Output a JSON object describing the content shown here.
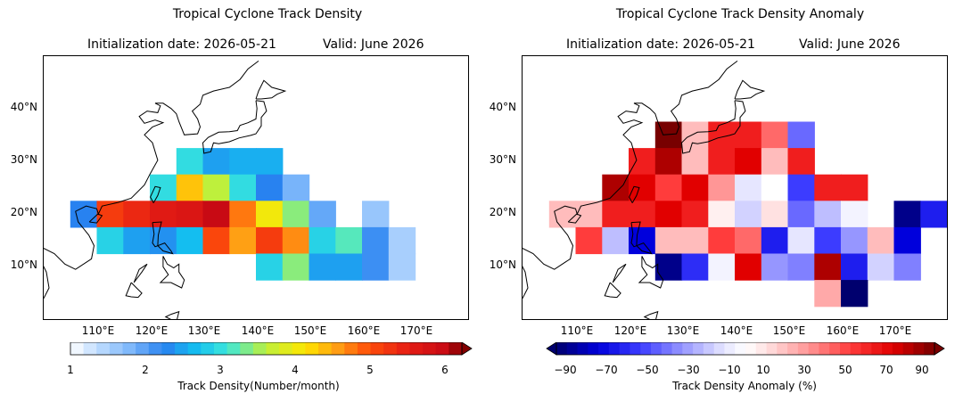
{
  "left_panel": {
    "title": "Tropical Cyclone Track Density",
    "init_label": "Initialization date: 2026-05-21",
    "valid_label": "Valid: June 2026",
    "colorbar_title": "Track Density(Number/month)",
    "colorbar_ticks": [
      "1",
      "2",
      "3",
      "4",
      "5",
      "6"
    ]
  },
  "right_panel": {
    "title": "Tropical Cyclone Track Density Anomaly",
    "init_label": "Initialization date: 2026-05-21",
    "valid_label": "Valid: June 2026",
    "colorbar_title": "Track Density Anomaly (%)",
    "colorbar_ticks": [
      "−90",
      "−70",
      "−50",
      "−30",
      "−10",
      "10",
      "30",
      "50",
      "70",
      "90"
    ]
  },
  "map_axes": {
    "lat_labels": [
      "40°N",
      "30°N",
      "20°N",
      "10°N"
    ],
    "lon_labels": [
      "110°E",
      "120°E",
      "130°E",
      "140°E",
      "150°E",
      "160°E",
      "170°E"
    ]
  },
  "chart_data": [
    {
      "type": "heatmap",
      "title": "Tropical Cyclone Track Density",
      "units": "Number/month",
      "cell_size_deg": 5,
      "color_range": [
        1,
        6
      ],
      "cells": [
        {
          "lon": 127.5,
          "lat": 30,
          "value": 2.9
        },
        {
          "lon": 132.5,
          "lat": 30,
          "value": 2.4
        },
        {
          "lon": 137.5,
          "lat": 30,
          "value": 2.5
        },
        {
          "lon": 142.5,
          "lat": 30,
          "value": 2.5
        },
        {
          "lon": 122.5,
          "lat": 25,
          "value": 2.9
        },
        {
          "lon": 127.5,
          "lat": 25,
          "value": 4.2
        },
        {
          "lon": 132.5,
          "lat": 25,
          "value": 3.5
        },
        {
          "lon": 137.5,
          "lat": 25,
          "value": 2.9
        },
        {
          "lon": 142.5,
          "lat": 25,
          "value": 2.2
        },
        {
          "lon": 147.5,
          "lat": 25,
          "value": 1.8
        },
        {
          "lon": 107.5,
          "lat": 20,
          "value": 2.2
        },
        {
          "lon": 112.5,
          "lat": 20,
          "value": 5.0
        },
        {
          "lon": 117.5,
          "lat": 20,
          "value": 5.2
        },
        {
          "lon": 122.5,
          "lat": 20,
          "value": 5.4
        },
        {
          "lon": 127.5,
          "lat": 20,
          "value": 5.5
        },
        {
          "lon": 132.5,
          "lat": 20,
          "value": 5.8
        },
        {
          "lon": 137.5,
          "lat": 20,
          "value": 4.6
        },
        {
          "lon": 142.5,
          "lat": 20,
          "value": 3.9
        },
        {
          "lon": 147.5,
          "lat": 20,
          "value": 3.3
        },
        {
          "lon": 152.5,
          "lat": 20,
          "value": 1.9
        },
        {
          "lon": 162.5,
          "lat": 20,
          "value": 1.6
        },
        {
          "lon": 112.5,
          "lat": 15,
          "value": 2.8
        },
        {
          "lon": 117.5,
          "lat": 15,
          "value": 2.4
        },
        {
          "lon": 122.5,
          "lat": 15,
          "value": 2.3
        },
        {
          "lon": 127.5,
          "lat": 15,
          "value": 2.6
        },
        {
          "lon": 132.5,
          "lat": 15,
          "value": 4.9
        },
        {
          "lon": 137.5,
          "lat": 15,
          "value": 4.4
        },
        {
          "lon": 142.5,
          "lat": 15,
          "value": 5.0
        },
        {
          "lon": 147.5,
          "lat": 15,
          "value": 4.5
        },
        {
          "lon": 152.5,
          "lat": 15,
          "value": 2.8
        },
        {
          "lon": 157.5,
          "lat": 15,
          "value": 3.1
        },
        {
          "lon": 162.5,
          "lat": 15,
          "value": 2.1
        },
        {
          "lon": 167.5,
          "lat": 15,
          "value": 1.5
        },
        {
          "lon": 142.5,
          "lat": 10,
          "value": 2.8
        },
        {
          "lon": 147.5,
          "lat": 10,
          "value": 3.3
        },
        {
          "lon": 152.5,
          "lat": 10,
          "value": 2.4
        },
        {
          "lon": 157.5,
          "lat": 10,
          "value": 2.4
        },
        {
          "lon": 162.5,
          "lat": 10,
          "value": 2.1
        },
        {
          "lon": 167.5,
          "lat": 10,
          "value": 1.5
        }
      ]
    },
    {
      "type": "heatmap",
      "title": "Tropical Cyclone Track Density Anomaly",
      "units": "%",
      "cell_size_deg": 5,
      "color_range": [
        -90,
        90
      ],
      "cells": [
        {
          "lon": 127.5,
          "lat": 35,
          "value": 90
        },
        {
          "lon": 132.5,
          "lat": 35,
          "value": 20
        },
        {
          "lon": 137.5,
          "lat": 35,
          "value": 60
        },
        {
          "lon": 142.5,
          "lat": 35,
          "value": 60
        },
        {
          "lon": 147.5,
          "lat": 35,
          "value": 40
        },
        {
          "lon": 152.5,
          "lat": 35,
          "value": -40
        },
        {
          "lon": 122.5,
          "lat": 30,
          "value": 60
        },
        {
          "lon": 127.5,
          "lat": 30,
          "value": 80
        },
        {
          "lon": 132.5,
          "lat": 30,
          "value": 20
        },
        {
          "lon": 137.5,
          "lat": 30,
          "value": 60
        },
        {
          "lon": 142.5,
          "lat": 30,
          "value": 70
        },
        {
          "lon": 147.5,
          "lat": 30,
          "value": 20
        },
        {
          "lon": 152.5,
          "lat": 30,
          "value": 60
        },
        {
          "lon": 117.5,
          "lat": 25,
          "value": 80
        },
        {
          "lon": 122.5,
          "lat": 25,
          "value": 70
        },
        {
          "lon": 127.5,
          "lat": 25,
          "value": 50
        },
        {
          "lon": 132.5,
          "lat": 25,
          "value": 70
        },
        {
          "lon": 137.5,
          "lat": 25,
          "value": 30
        },
        {
          "lon": 142.5,
          "lat": 25,
          "value": -10
        },
        {
          "lon": 147.5,
          "lat": 25,
          "value": 0
        },
        {
          "lon": 152.5,
          "lat": 25,
          "value": -50
        },
        {
          "lon": 157.5,
          "lat": 25,
          "value": 60
        },
        {
          "lon": 162.5,
          "lat": 25,
          "value": 60
        },
        {
          "lon": 107.5,
          "lat": 20,
          "value": 20
        },
        {
          "lon": 112.5,
          "lat": 20,
          "value": 20
        },
        {
          "lon": 117.5,
          "lat": 20,
          "value": 60
        },
        {
          "lon": 122.5,
          "lat": 20,
          "value": 60
        },
        {
          "lon": 127.5,
          "lat": 20,
          "value": 70
        },
        {
          "lon": 132.5,
          "lat": 20,
          "value": 60
        },
        {
          "lon": 137.5,
          "lat": 20,
          "value": 5
        },
        {
          "lon": 142.5,
          "lat": 20,
          "value": -15
        },
        {
          "lon": 147.5,
          "lat": 20,
          "value": 10
        },
        {
          "lon": 152.5,
          "lat": 20,
          "value": -40
        },
        {
          "lon": 157.5,
          "lat": 20,
          "value": -20
        },
        {
          "lon": 162.5,
          "lat": 20,
          "value": -5
        },
        {
          "lon": 172.5,
          "lat": 20,
          "value": -85
        },
        {
          "lon": 177.5,
          "lat": 20,
          "value": -60
        },
        {
          "lon": 112.5,
          "lat": 15,
          "value": 50
        },
        {
          "lon": 117.5,
          "lat": 15,
          "value": -20
        },
        {
          "lon": 122.5,
          "lat": 15,
          "value": -70
        },
        {
          "lon": 127.5,
          "lat": 15,
          "value": 20
        },
        {
          "lon": 132.5,
          "lat": 15,
          "value": 20
        },
        {
          "lon": 137.5,
          "lat": 15,
          "value": 50
        },
        {
          "lon": 142.5,
          "lat": 15,
          "value": 40
        },
        {
          "lon": 147.5,
          "lat": 15,
          "value": -60
        },
        {
          "lon": 152.5,
          "lat": 15,
          "value": -10
        },
        {
          "lon": 157.5,
          "lat": 15,
          "value": -50
        },
        {
          "lon": 162.5,
          "lat": 15,
          "value": -30
        },
        {
          "lon": 167.5,
          "lat": 15,
          "value": 20
        },
        {
          "lon": 172.5,
          "lat": 15,
          "value": -70
        },
        {
          "lon": 127.5,
          "lat": 10,
          "value": -85
        },
        {
          "lon": 132.5,
          "lat": 10,
          "value": -55
        },
        {
          "lon": 137.5,
          "lat": 10,
          "value": -5
        },
        {
          "lon": 142.5,
          "lat": 10,
          "value": 70
        },
        {
          "lon": 147.5,
          "lat": 10,
          "value": -30
        },
        {
          "lon": 152.5,
          "lat": 10,
          "value": -35
        },
        {
          "lon": 157.5,
          "lat": 10,
          "value": 80
        },
        {
          "lon": 162.5,
          "lat": 10,
          "value": -60
        },
        {
          "lon": 167.5,
          "lat": 10,
          "value": -15
        },
        {
          "lon": 172.5,
          "lat": 10,
          "value": -35
        },
        {
          "lon": 157.5,
          "lat": 5,
          "value": 25
        },
        {
          "lon": 162.5,
          "lat": 5,
          "value": -90
        }
      ]
    }
  ]
}
